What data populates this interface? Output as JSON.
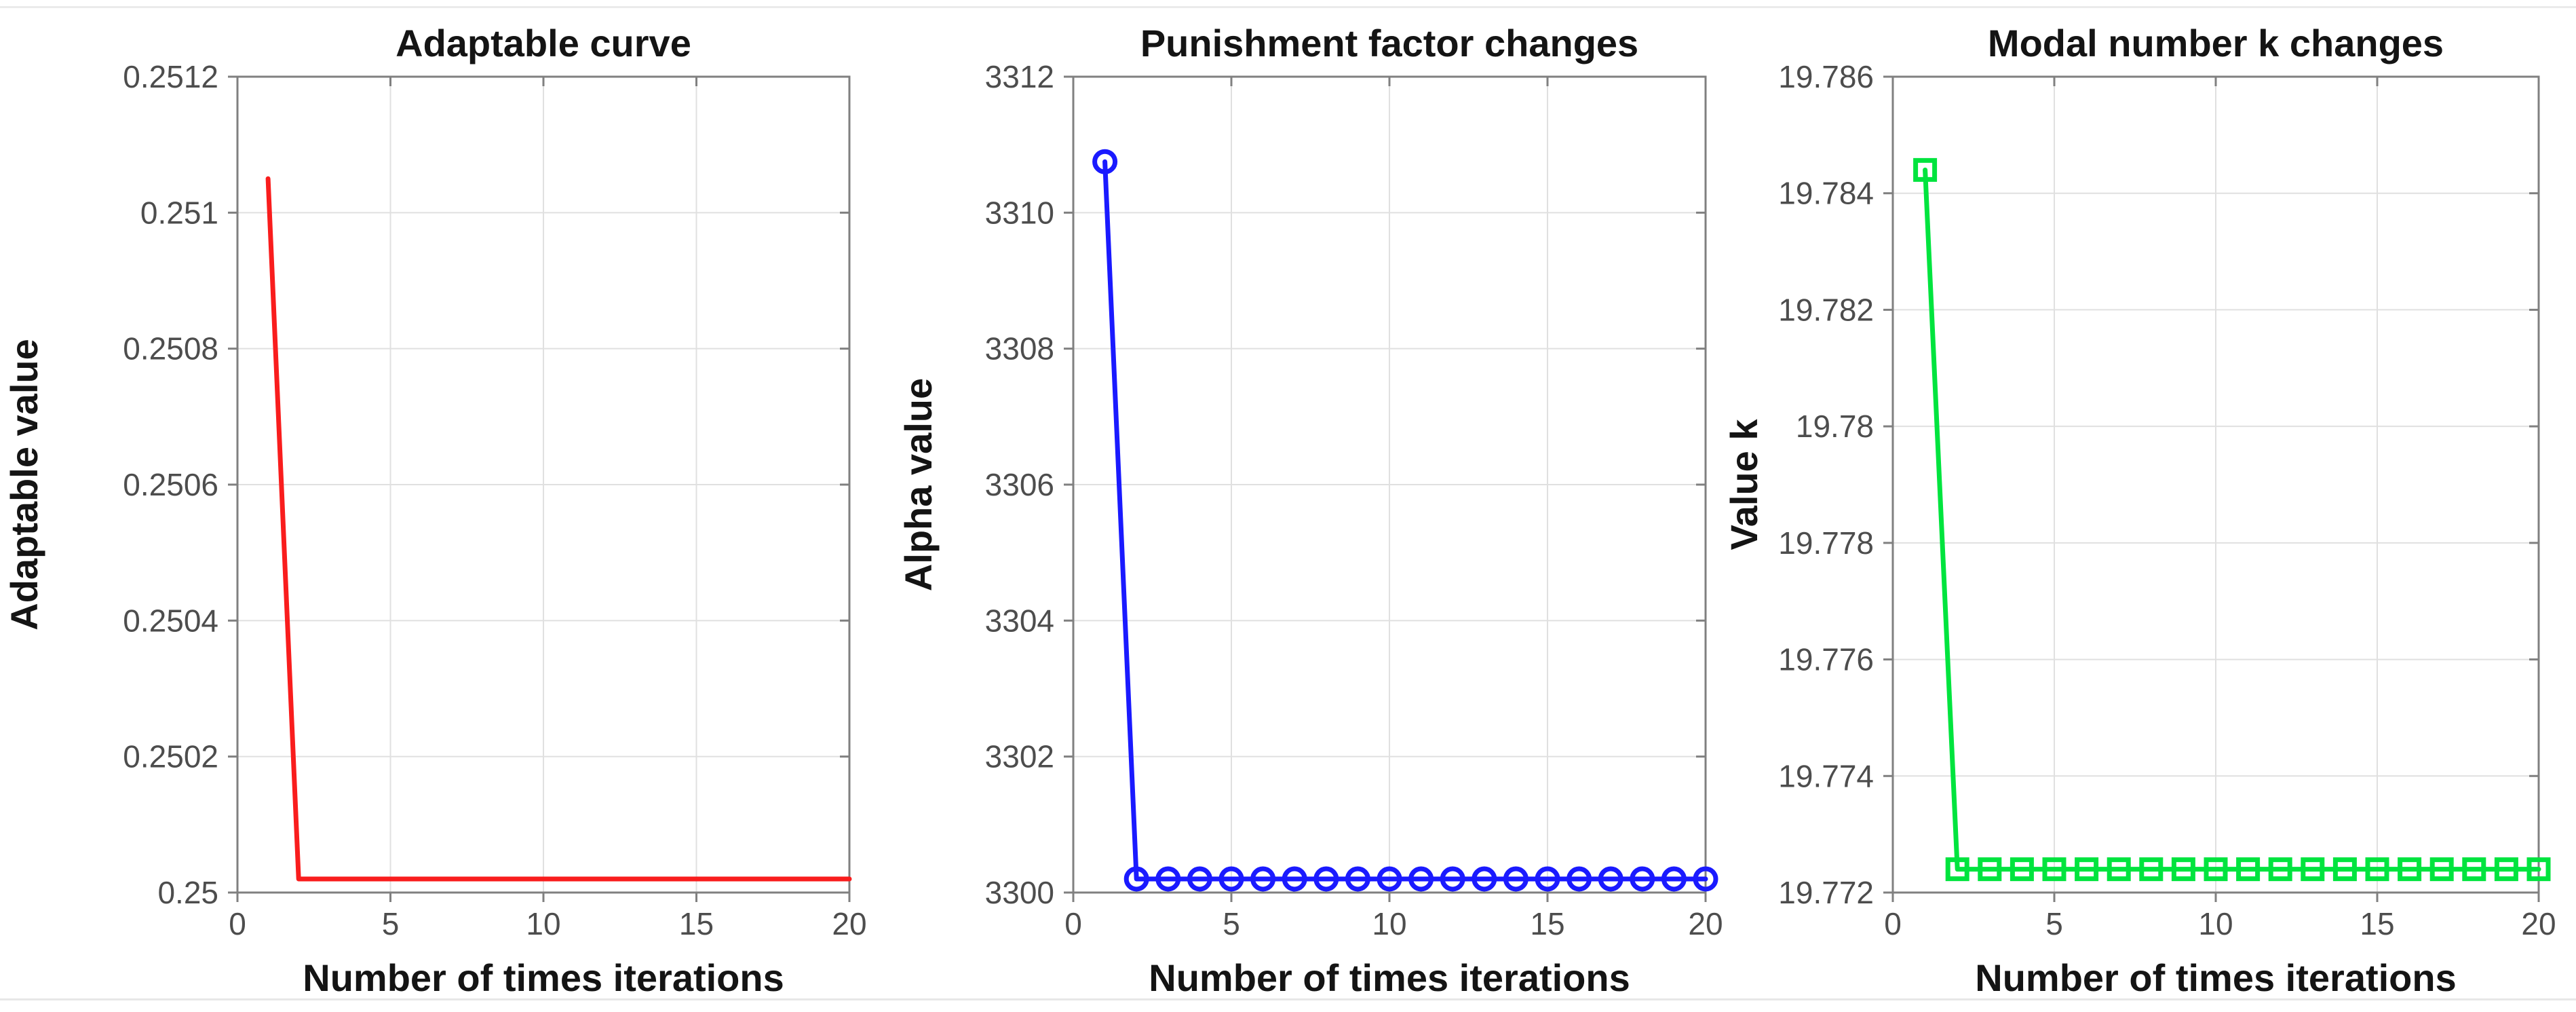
{
  "figure": {
    "background": "#ffffff",
    "top_border_color": "#ebebeb",
    "bottom_border_color": "#e7e7e7"
  },
  "styles": {
    "axis_color": "#808080",
    "grid_color": "#e0e0e0",
    "tick_label_color": "#4d4d4d",
    "text_color": "#141414"
  },
  "chart_data": [
    {
      "type": "line",
      "title": "Adaptable curve",
      "xlabel": "Number of times iterations",
      "ylabel": "Adaptable value",
      "series_name": "adaptable-value",
      "color": "#f91d1d",
      "marker": "none",
      "grid": true,
      "legend": null,
      "xlim": [
        0,
        20
      ],
      "ylim": [
        0.25,
        0.2512
      ],
      "xticks": [
        0,
        5,
        10,
        15,
        20
      ],
      "xtick_labels": [
        "0",
        "5",
        "10",
        "15",
        "20"
      ],
      "yticks": [
        0.25,
        0.2502,
        0.2504,
        0.2506,
        0.2508,
        0.251,
        0.2512
      ],
      "ytick_labels": [
        "0.25",
        "0.2502",
        "0.2504",
        "0.2506",
        "0.2508",
        "0.251",
        "0.2512"
      ],
      "x": [
        1,
        2,
        3,
        4,
        5,
        6,
        7,
        8,
        9,
        10,
        11,
        12,
        13,
        14,
        15,
        16,
        17,
        18,
        19,
        20
      ],
      "values": [
        0.25105,
        0.25002,
        0.25002,
        0.25002,
        0.25002,
        0.25002,
        0.25002,
        0.25002,
        0.25002,
        0.25002,
        0.25002,
        0.25002,
        0.25002,
        0.25002,
        0.25002,
        0.25002,
        0.25002,
        0.25002,
        0.25002,
        0.25002
      ]
    },
    {
      "type": "line",
      "title": "Punishment factor changes",
      "xlabel": "Number of times iterations",
      "ylabel": "Alpha value",
      "series_name": "alpha-value",
      "color": "#1a1aff",
      "marker": "circle",
      "grid": true,
      "legend": null,
      "xlim": [
        0,
        20
      ],
      "ylim": [
        3300,
        3312
      ],
      "xticks": [
        0,
        5,
        10,
        15,
        20
      ],
      "xtick_labels": [
        "0",
        "5",
        "10",
        "15",
        "20"
      ],
      "yticks": [
        3300,
        3302,
        3304,
        3306,
        3308,
        3310,
        3312
      ],
      "ytick_labels": [
        "3300",
        "3302",
        "3304",
        "3306",
        "3308",
        "3310",
        "3312"
      ],
      "x": [
        1,
        2,
        3,
        4,
        5,
        6,
        7,
        8,
        9,
        10,
        11,
        12,
        13,
        14,
        15,
        16,
        17,
        18,
        19,
        20
      ],
      "values": [
        3310.75,
        3300.2,
        3300.2,
        3300.2,
        3300.2,
        3300.2,
        3300.2,
        3300.2,
        3300.2,
        3300.2,
        3300.2,
        3300.2,
        3300.2,
        3300.2,
        3300.2,
        3300.2,
        3300.2,
        3300.2,
        3300.2,
        3300.2
      ]
    },
    {
      "type": "line",
      "title": "Modal number k changes",
      "xlabel": "Number of times iterations",
      "ylabel": "Value k",
      "series_name": "value-k",
      "color": "#00e43e",
      "marker": "square",
      "grid": true,
      "legend": null,
      "xlim": [
        0,
        20
      ],
      "ylim": [
        19.772,
        19.786
      ],
      "xticks": [
        0,
        5,
        10,
        15,
        20
      ],
      "xtick_labels": [
        "0",
        "5",
        "10",
        "15",
        "20"
      ],
      "yticks": [
        19.772,
        19.774,
        19.776,
        19.778,
        19.78,
        19.782,
        19.784,
        19.786
      ],
      "ytick_labels": [
        "19.772",
        "19.774",
        "19.776",
        "19.778",
        "19.78",
        "19.782",
        "19.784",
        "19.786"
      ],
      "x": [
        1,
        2,
        3,
        4,
        5,
        6,
        7,
        8,
        9,
        10,
        11,
        12,
        13,
        14,
        15,
        16,
        17,
        18,
        19,
        20
      ],
      "values": [
        19.7844,
        19.7724,
        19.7724,
        19.7724,
        19.7724,
        19.7724,
        19.7724,
        19.7724,
        19.7724,
        19.7724,
        19.7724,
        19.7724,
        19.7724,
        19.7724,
        19.7724,
        19.7724,
        19.7724,
        19.7724,
        19.7724,
        19.7724
      ]
    }
  ]
}
